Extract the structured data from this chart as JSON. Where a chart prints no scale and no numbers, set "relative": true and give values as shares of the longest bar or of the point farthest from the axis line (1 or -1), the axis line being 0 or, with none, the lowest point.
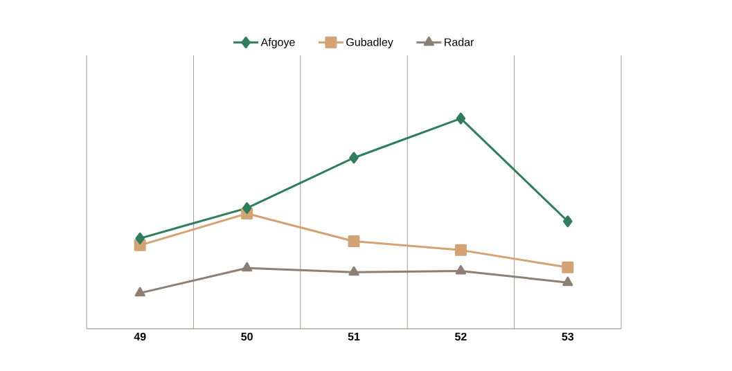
{
  "chart_data": {
    "type": "line",
    "relative": true,
    "categories": [
      "49",
      "50",
      "51",
      "52",
      "53"
    ],
    "series": [
      {
        "name": "Afgoye",
        "color": "#2e7d5b",
        "marker": "diamond",
        "values": [
          0.43,
          0.574,
          0.813,
          1,
          0.511
        ]
      },
      {
        "name": "Gubadley",
        "color": "#d4a373",
        "marker": "square",
        "values": [
          0.397,
          0.548,
          0.416,
          0.374,
          0.292
        ]
      },
      {
        "name": "Radar",
        "color": "#8c7f73",
        "marker": "triangle",
        "values": [
          0.17,
          0.289,
          0.269,
          0.275,
          0.22
        ]
      }
    ],
    "grid": "x",
    "legend": "top",
    "line_style": "solid"
  }
}
